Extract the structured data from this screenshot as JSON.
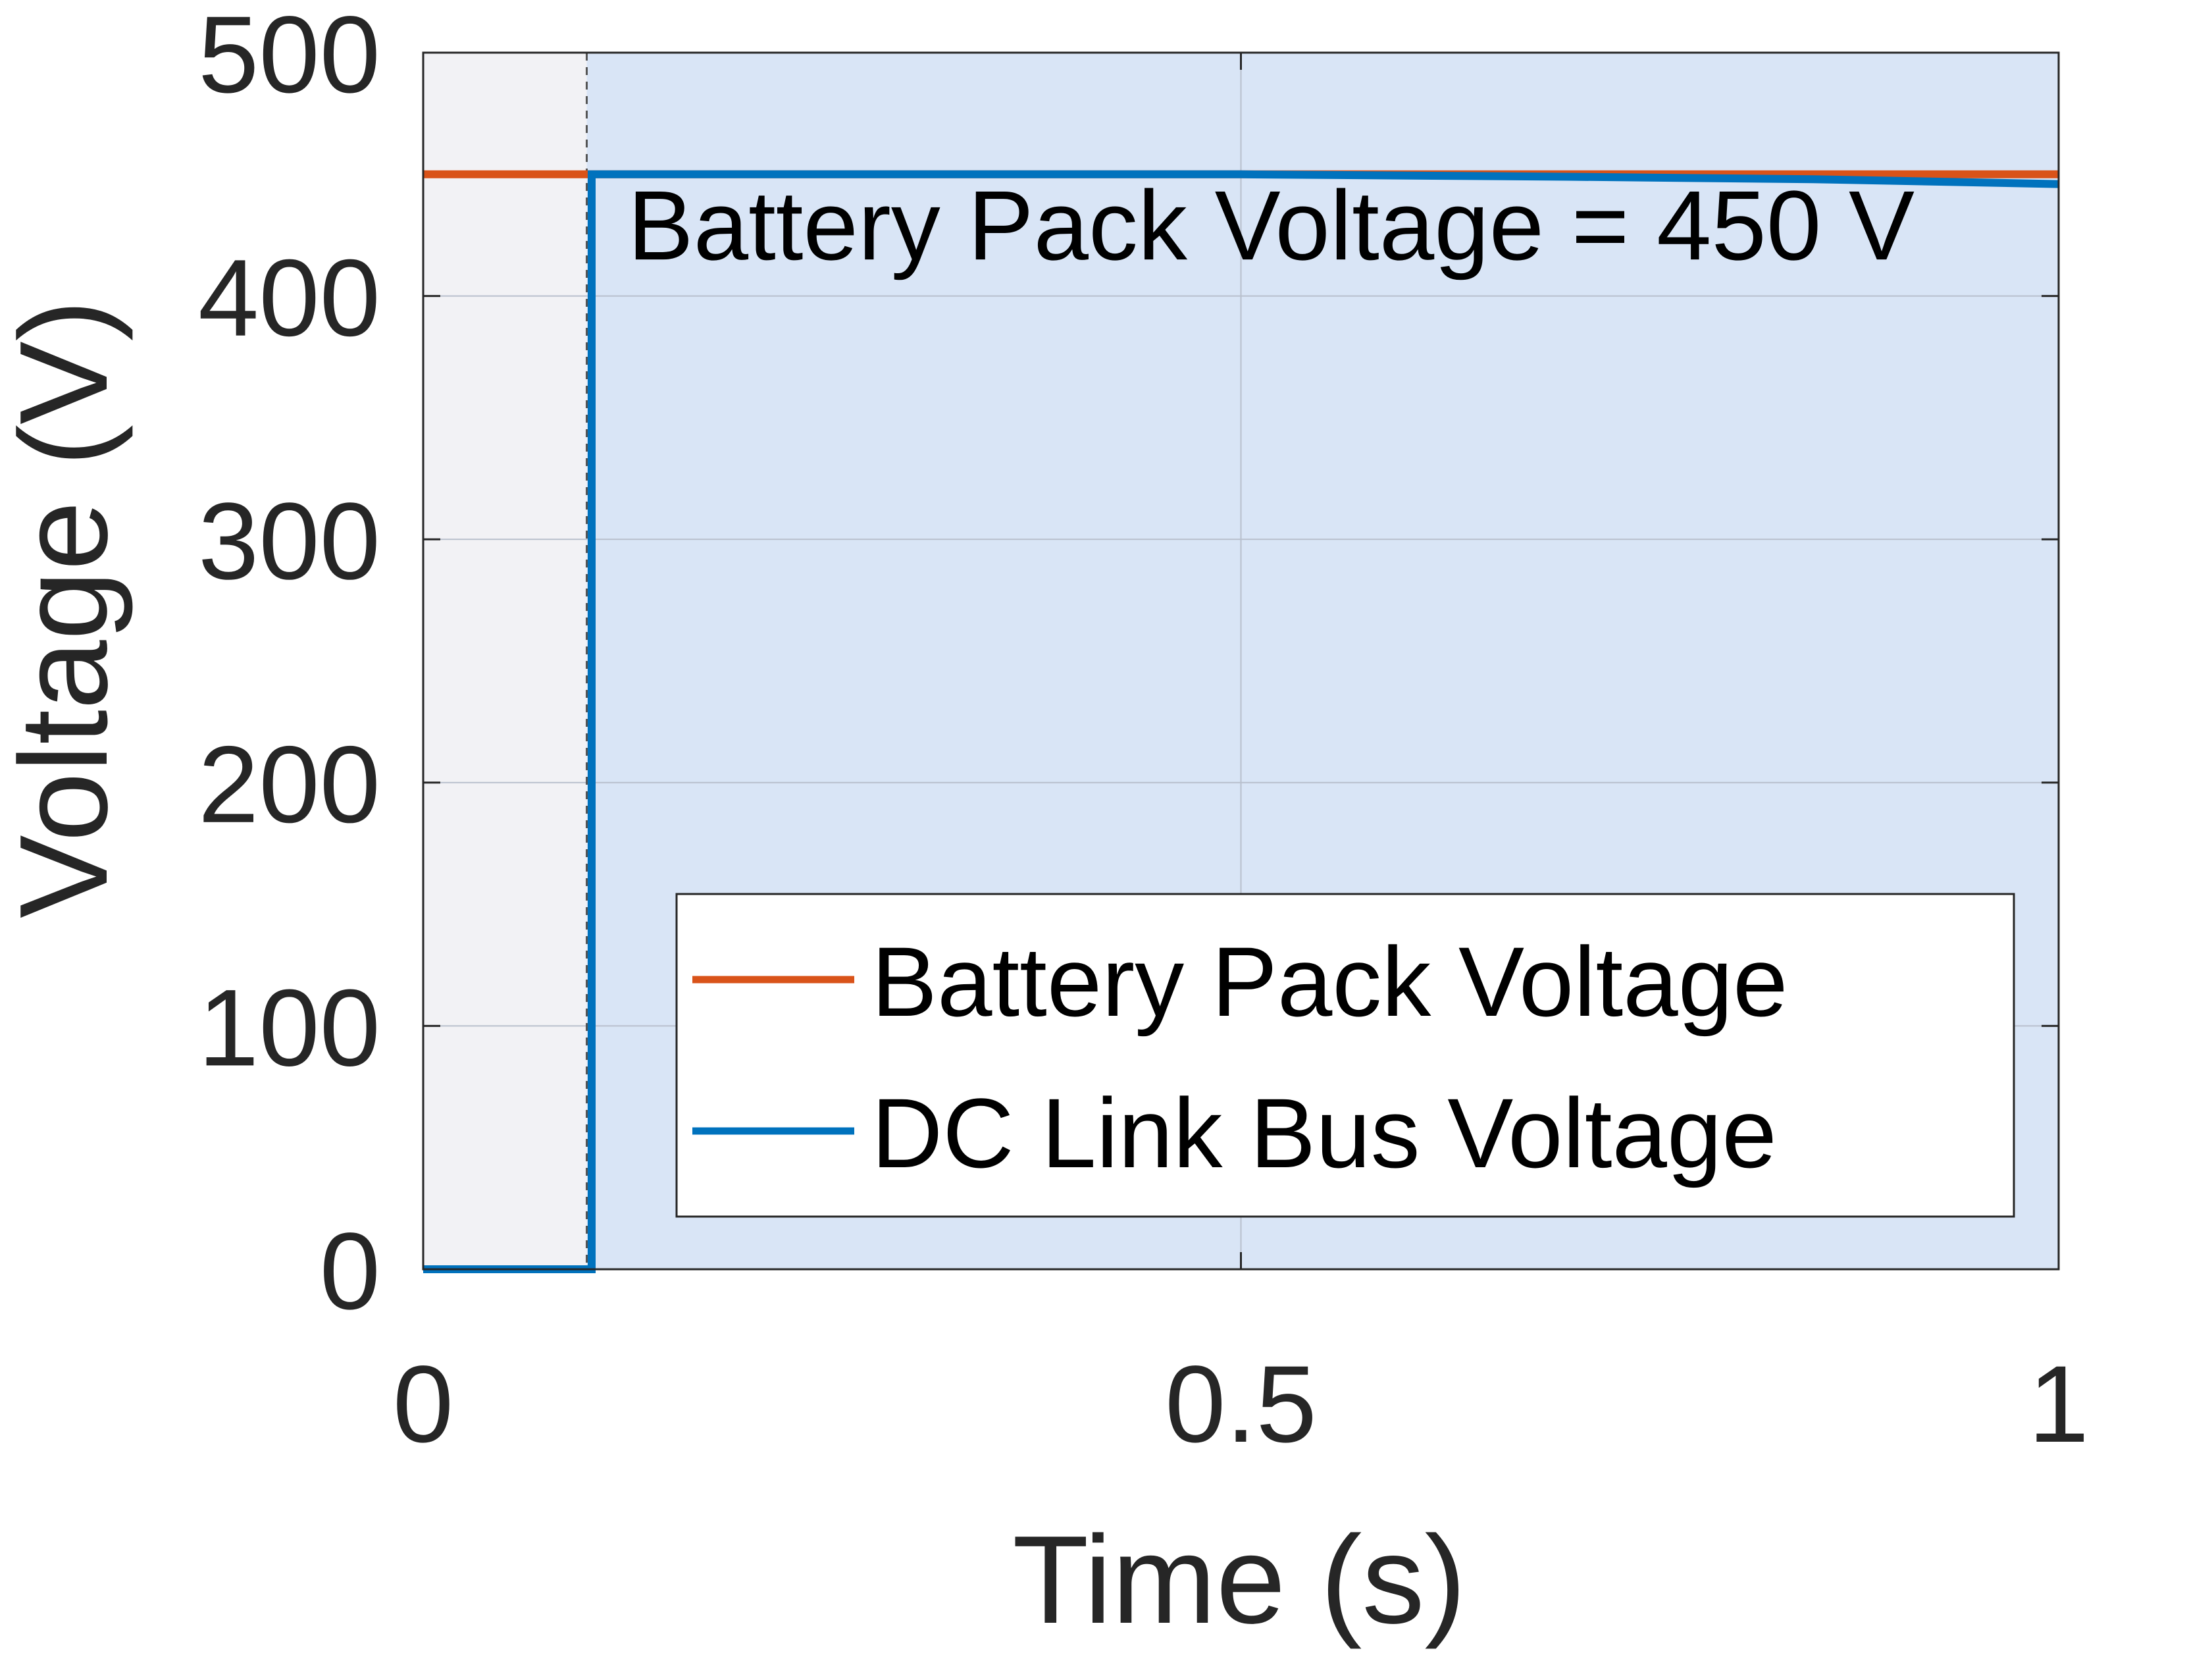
{
  "chart_data": {
    "type": "line",
    "xlabel": "Time (s)",
    "ylabel": "Voltage (V)",
    "xlim": [
      0,
      1
    ],
    "ylim": [
      0,
      500
    ],
    "x_ticks": [
      0,
      0.5,
      1
    ],
    "x_tick_labels": [
      "0",
      "0.5",
      "1"
    ],
    "y_ticks": [
      0,
      100,
      200,
      300,
      400,
      500
    ],
    "y_tick_labels": [
      "0",
      "100",
      "200",
      "300",
      "400",
      "500"
    ],
    "grid": true,
    "legend_position": "bottom-right",
    "annotation": {
      "text": "Battery Pack Voltage = 450 V",
      "x": 0.125,
      "y": 415
    },
    "regions": [
      {
        "x_start": 0,
        "x_end": 0.1,
        "color": "#f2f2f5"
      },
      {
        "x_start": 0.1,
        "x_end": 1,
        "color": "#d9e5f6"
      }
    ],
    "reference_lines": [
      {
        "orientation": "horizontal",
        "value": 450,
        "color": "#333333",
        "style": "dashed"
      },
      {
        "orientation": "vertical",
        "value": 0.1,
        "color": "#555555",
        "style": "dashed"
      }
    ],
    "series": [
      {
        "name": "Battery Pack Voltage",
        "color": "#d95319",
        "x": [
          0,
          1
        ],
        "y": [
          450,
          450
        ]
      },
      {
        "name": "DC Link Bus Voltage",
        "color": "#0072bd",
        "x": [
          0,
          0.103,
          0.103,
          0.5,
          0.7,
          0.85,
          1
        ],
        "y": [
          0,
          0,
          450,
          450,
          449,
          448,
          446
        ]
      }
    ]
  }
}
